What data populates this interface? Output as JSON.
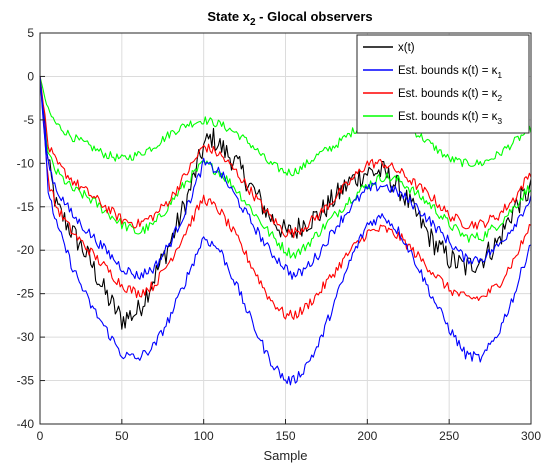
{
  "chart_data": {
    "type": "line",
    "title_main": "State x",
    "title_sub": "2",
    "title_rest": " - Glocal observers",
    "xlabel": "Sample",
    "ylabel": "",
    "xlim": [
      0,
      300
    ],
    "ylim": [
      -40,
      5
    ],
    "xticks": [
      0,
      50,
      100,
      150,
      200,
      250,
      300
    ],
    "yticks": [
      5,
      0,
      -5,
      -10,
      -15,
      -20,
      -25,
      -30,
      -35,
      -40
    ],
    "grid": true,
    "legend_position": "top-right",
    "legend": [
      {
        "label": "x(t)",
        "color": "#000000"
      },
      {
        "label": "Est. bounds κ(t) = κ",
        "sub": "1",
        "color": "#0000ff"
      },
      {
        "label": "Est. bounds κ(t) = κ",
        "sub": "2",
        "color": "#ff0000"
      },
      {
        "label": "Est. bounds κ(t) = κ",
        "sub": "3",
        "color": "#00ff00"
      }
    ],
    "series": [
      {
        "name": "x(t)",
        "color": "#000000",
        "noise": 1.4,
        "x": [
          0,
          5,
          10,
          20,
          30,
          40,
          50,
          60,
          70,
          80,
          90,
          100,
          105,
          110,
          120,
          130,
          140,
          150,
          155,
          160,
          170,
          180,
          190,
          200,
          210,
          220,
          230,
          240,
          250,
          260,
          270,
          280,
          290,
          300
        ],
        "y": [
          0,
          -10,
          -15,
          -18,
          -21,
          -25,
          -28,
          -27,
          -23,
          -19,
          -14,
          -8,
          -7,
          -8,
          -10,
          -13,
          -16,
          -18,
          -18,
          -17,
          -16,
          -14,
          -12,
          -11,
          -11,
          -13,
          -16,
          -19,
          -21,
          -22,
          -21,
          -19,
          -15,
          -13
        ]
      },
      {
        "name": "upper κ3",
        "color": "#00ff00",
        "noise": 0.5,
        "x": [
          0,
          5,
          10,
          20,
          30,
          40,
          50,
          60,
          70,
          80,
          90,
          100,
          110,
          120,
          130,
          140,
          150,
          155,
          160,
          170,
          180,
          190,
          200,
          210,
          220,
          230,
          240,
          250,
          260,
          270,
          280,
          290,
          300
        ],
        "y": [
          0,
          -4,
          -5.5,
          -7,
          -8,
          -9,
          -9.5,
          -9,
          -8,
          -6.5,
          -5.5,
          -5,
          -5.5,
          -6.5,
          -8,
          -10,
          -11,
          -11,
          -10.5,
          -9,
          -8,
          -6.5,
          -5,
          -5,
          -5.5,
          -6.5,
          -8,
          -9.5,
          -10,
          -10,
          -9,
          -7.5,
          -6
        ]
      },
      {
        "name": "lower κ3",
        "color": "#00ff00",
        "noise": 0.6,
        "x": [
          0,
          5,
          10,
          20,
          30,
          40,
          50,
          60,
          70,
          80,
          90,
          100,
          110,
          120,
          130,
          140,
          150,
          155,
          160,
          170,
          180,
          190,
          200,
          210,
          220,
          230,
          240,
          250,
          260,
          270,
          280,
          290,
          300
        ],
        "y": [
          0,
          -9,
          -11,
          -13,
          -14,
          -15.5,
          -17,
          -18,
          -17,
          -14.5,
          -12,
          -10,
          -11,
          -13,
          -15.5,
          -18,
          -20,
          -20.5,
          -20,
          -18,
          -16,
          -14,
          -12.5,
          -11.5,
          -12,
          -13.5,
          -15,
          -17,
          -18.5,
          -18.5,
          -17,
          -15,
          -12.5
        ]
      },
      {
        "name": "upper κ2",
        "color": "#ff0000",
        "noise": 0.6,
        "x": [
          0,
          5,
          10,
          20,
          30,
          40,
          50,
          60,
          70,
          80,
          90,
          100,
          110,
          120,
          130,
          140,
          150,
          155,
          160,
          170,
          180,
          190,
          200,
          210,
          220,
          230,
          240,
          250,
          260,
          270,
          280,
          290,
          300
        ],
        "y": [
          0,
          -8,
          -10,
          -12,
          -13.5,
          -15,
          -16.5,
          -17,
          -16,
          -14,
          -11,
          -8,
          -9,
          -11,
          -13.5,
          -16,
          -18,
          -18,
          -17.5,
          -16,
          -14,
          -12,
          -10,
          -10,
          -11,
          -12.5,
          -14,
          -16,
          -17,
          -17,
          -16,
          -14,
          -11
        ]
      },
      {
        "name": "lower κ2",
        "color": "#ff0000",
        "noise": 0.6,
        "x": [
          0,
          5,
          10,
          20,
          30,
          40,
          50,
          60,
          70,
          80,
          90,
          100,
          110,
          120,
          130,
          140,
          150,
          155,
          160,
          170,
          180,
          190,
          200,
          210,
          220,
          230,
          240,
          250,
          260,
          270,
          280,
          290,
          300
        ],
        "y": [
          0,
          -12,
          -15,
          -18,
          -20,
          -22,
          -24,
          -25,
          -24,
          -21,
          -17.5,
          -14,
          -15.5,
          -18.5,
          -22,
          -25.5,
          -27.5,
          -27.5,
          -27,
          -25,
          -22.5,
          -20,
          -18,
          -17.5,
          -18.5,
          -20.5,
          -22.5,
          -24.5,
          -25.5,
          -25.5,
          -24,
          -21,
          -17
        ]
      },
      {
        "name": "upper κ1",
        "color": "#0000ff",
        "noise": 0.6,
        "x": [
          0,
          5,
          10,
          20,
          30,
          40,
          50,
          60,
          70,
          80,
          90,
          100,
          110,
          120,
          130,
          140,
          150,
          155,
          160,
          170,
          180,
          190,
          200,
          210,
          220,
          230,
          240,
          250,
          260,
          270,
          280,
          290,
          300
        ],
        "y": [
          0,
          -10,
          -13,
          -16,
          -18,
          -20,
          -22,
          -23,
          -22,
          -19,
          -15,
          -10,
          -11,
          -14,
          -17,
          -20,
          -22,
          -23,
          -22.5,
          -20.5,
          -17.5,
          -15,
          -13,
          -12.5,
          -13.5,
          -15,
          -17,
          -19,
          -21,
          -21,
          -19.5,
          -17,
          -14
        ]
      },
      {
        "name": "lower κ1",
        "color": "#0000ff",
        "noise": 0.6,
        "x": [
          0,
          5,
          10,
          20,
          30,
          40,
          50,
          60,
          70,
          80,
          90,
          100,
          110,
          120,
          130,
          140,
          150,
          155,
          160,
          170,
          180,
          190,
          200,
          210,
          220,
          230,
          240,
          250,
          260,
          270,
          280,
          290,
          300
        ],
        "y": [
          0,
          -13,
          -17,
          -22,
          -26,
          -29,
          -32,
          -32.5,
          -31,
          -27.5,
          -23,
          -18.5,
          -20,
          -24,
          -28.5,
          -32.5,
          -35,
          -35,
          -34,
          -31,
          -26,
          -21,
          -17,
          -16,
          -18,
          -21.5,
          -25.5,
          -29,
          -32,
          -32.5,
          -29.5,
          -25,
          -19
        ]
      }
    ]
  }
}
